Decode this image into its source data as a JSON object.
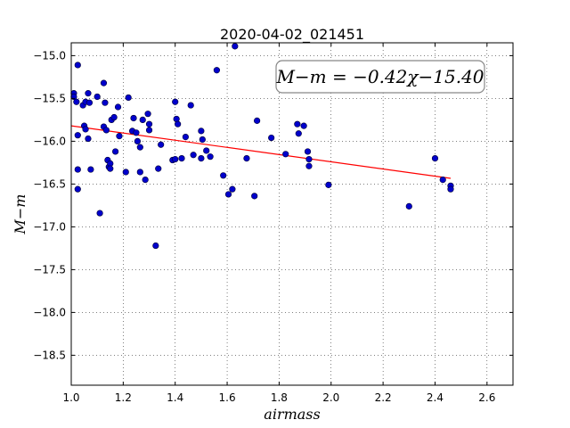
{
  "chart_data": {
    "type": "scatter",
    "title": "2020-04-02_021451",
    "xlabel": "airmass",
    "ylabel": "M−m",
    "xlim": [
      1.0,
      2.7
    ],
    "ylim": [
      -18.85,
      -14.85
    ],
    "y_inverted": true,
    "grid": true,
    "x_ticks": [
      1.0,
      1.2,
      1.4,
      1.6,
      1.8,
      2.0,
      2.2,
      2.4,
      2.6
    ],
    "x_tick_labels": [
      "1.0",
      "1.2",
      "1.4",
      "1.6",
      "1.8",
      "2.0",
      "2.2",
      "2.4",
      "2.6"
    ],
    "y_ticks": [
      -15.0,
      -15.5,
      -16.0,
      -16.5,
      -17.0,
      -17.5,
      -18.0,
      -18.5
    ],
    "y_tick_labels": [
      "−15.0",
      "−15.5",
      "−16.0",
      "−16.5",
      "−17.0",
      "−17.5",
      "−18.0",
      "−18.5"
    ],
    "annotation": "M−m = −0.42χ−15.40",
    "point_color": "#0000cc",
    "fit_color": "#ff0000",
    "fit": {
      "slope": -0.42,
      "intercept": -15.4,
      "x_range": [
        1.0,
        2.46
      ]
    },
    "points": [
      [
        1.01,
        -15.44
      ],
      [
        1.02,
        -15.54
      ],
      [
        1.01,
        -15.48
      ],
      [
        1.025,
        -15.11
      ],
      [
        1.025,
        -15.93
      ],
      [
        1.025,
        -16.33
      ],
      [
        1.025,
        -16.56
      ],
      [
        1.045,
        -15.58
      ],
      [
        1.05,
        -15.82
      ],
      [
        1.055,
        -15.86
      ],
      [
        1.055,
        -15.54
      ],
      [
        1.065,
        -15.44
      ],
      [
        1.07,
        -15.55
      ],
      [
        1.065,
        -15.97
      ],
      [
        1.075,
        -16.33
      ],
      [
        1.1,
        -15.48
      ],
      [
        1.11,
        -16.84
      ],
      [
        1.125,
        -15.32
      ],
      [
        1.125,
        -15.83
      ],
      [
        1.13,
        -15.55
      ],
      [
        1.135,
        -15.87
      ],
      [
        1.14,
        -16.22
      ],
      [
        1.145,
        -16.3
      ],
      [
        1.15,
        -16.26
      ],
      [
        1.15,
        -16.32
      ],
      [
        1.155,
        -15.75
      ],
      [
        1.165,
        -15.72
      ],
      [
        1.17,
        -16.12
      ],
      [
        1.18,
        -15.6
      ],
      [
        1.185,
        -15.94
      ],
      [
        1.21,
        -16.36
      ],
      [
        1.22,
        -15.49
      ],
      [
        1.235,
        -15.88
      ],
      [
        1.24,
        -15.73
      ],
      [
        1.25,
        -15.9
      ],
      [
        1.255,
        -16.0
      ],
      [
        1.265,
        -16.07
      ],
      [
        1.265,
        -16.36
      ],
      [
        1.275,
        -15.75
      ],
      [
        1.285,
        -16.45
      ],
      [
        1.295,
        -15.68
      ],
      [
        1.3,
        -15.8
      ],
      [
        1.3,
        -15.87
      ],
      [
        1.325,
        -17.22
      ],
      [
        1.335,
        -16.32
      ],
      [
        1.345,
        -16.04
      ],
      [
        1.39,
        -16.22
      ],
      [
        1.4,
        -15.54
      ],
      [
        1.4,
        -16.21
      ],
      [
        1.405,
        -15.74
      ],
      [
        1.41,
        -15.8
      ],
      [
        1.425,
        -16.2
      ],
      [
        1.44,
        -15.95
      ],
      [
        1.46,
        -15.58
      ],
      [
        1.47,
        -16.16
      ],
      [
        1.5,
        -15.88
      ],
      [
        1.5,
        -16.2
      ],
      [
        1.505,
        -15.98
      ],
      [
        1.52,
        -16.11
      ],
      [
        1.535,
        -16.18
      ],
      [
        1.56,
        -15.17
      ],
      [
        1.585,
        -16.4
      ],
      [
        1.605,
        -16.62
      ],
      [
        1.62,
        -16.56
      ],
      [
        1.63,
        -14.89
      ],
      [
        1.675,
        -16.2
      ],
      [
        1.705,
        -16.64
      ],
      [
        1.715,
        -15.76
      ],
      [
        1.77,
        -15.96
      ],
      [
        1.825,
        -16.15
      ],
      [
        1.87,
        -15.8
      ],
      [
        1.875,
        -15.91
      ],
      [
        1.895,
        -15.82
      ],
      [
        1.91,
        -16.12
      ],
      [
        1.915,
        -16.21
      ],
      [
        1.915,
        -16.29
      ],
      [
        1.99,
        -16.51
      ],
      [
        2.3,
        -16.76
      ],
      [
        2.4,
        -16.2
      ],
      [
        2.43,
        -16.45
      ],
      [
        2.46,
        -16.52
      ],
      [
        2.46,
        -16.56
      ]
    ]
  }
}
